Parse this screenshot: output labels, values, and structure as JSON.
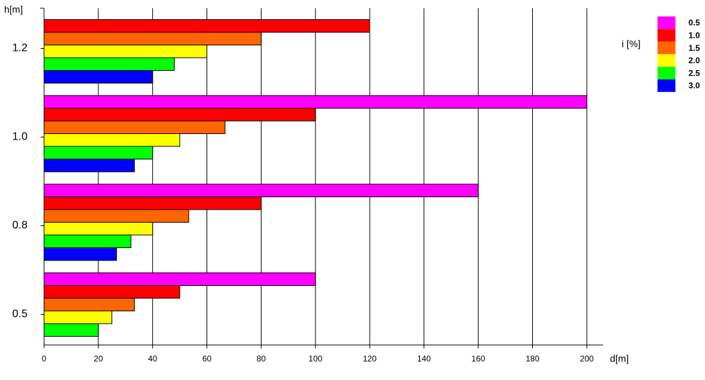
{
  "chart_data": {
    "type": "hbar",
    "y_label": "h[m]",
    "x_label": "d[m]",
    "legend_title": "i [%]",
    "categories": [
      "0.5",
      "0.8",
      "1.0",
      "1.2"
    ],
    "series": [
      {
        "name": "0.5",
        "color": "#ff00ff",
        "values": [
          100,
          160,
          200,
          null
        ]
      },
      {
        "name": "1.0",
        "color": "#ff0000",
        "values": [
          50,
          80,
          100,
          120
        ]
      },
      {
        "name": "1.5",
        "color": "#ff6600",
        "values": [
          33.3,
          53.3,
          66.7,
          80
        ]
      },
      {
        "name": "2.0",
        "color": "#ffff00",
        "values": [
          25,
          40,
          50,
          60
        ]
      },
      {
        "name": "2.5",
        "color": "#00ff00",
        "values": [
          20,
          32,
          40,
          48
        ]
      },
      {
        "name": "3.0",
        "color": "#0000ff",
        "values": [
          null,
          26.7,
          33.3,
          40
        ]
      }
    ],
    "xlim": [
      0,
      206
    ],
    "xticks": [
      0,
      20,
      40,
      60,
      80,
      100,
      120,
      140,
      160,
      180,
      200
    ],
    "grid": true,
    "legend": "right"
  }
}
